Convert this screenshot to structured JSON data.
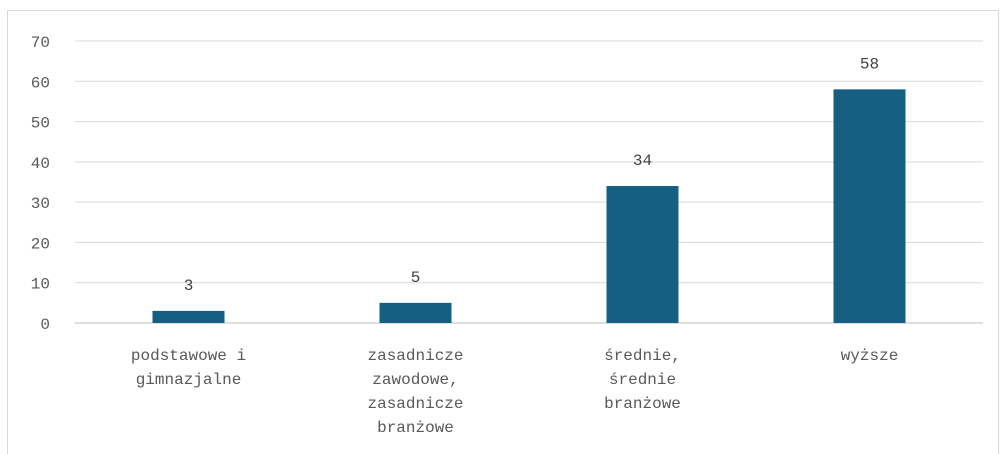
{
  "chart_data": {
    "type": "bar",
    "categories": [
      [
        "podstawowe i",
        "gimnazjalne"
      ],
      [
        "zasadnicze",
        "zawodowe,",
        "zasadnicze",
        "branżowe"
      ],
      [
        "średnie,",
        "średnie",
        "branżowe"
      ],
      [
        "wyższe"
      ]
    ],
    "values": [
      3,
      5,
      34,
      58
    ],
    "data_labels": [
      "3",
      "5",
      "34",
      "58"
    ],
    "ylim": [
      0,
      70
    ],
    "yticks": [
      0,
      10,
      20,
      30,
      40,
      50,
      60,
      70
    ],
    "title": "",
    "xlabel": "",
    "ylabel": "",
    "grid": true,
    "legend": "none",
    "bar_color": "#155f82"
  }
}
